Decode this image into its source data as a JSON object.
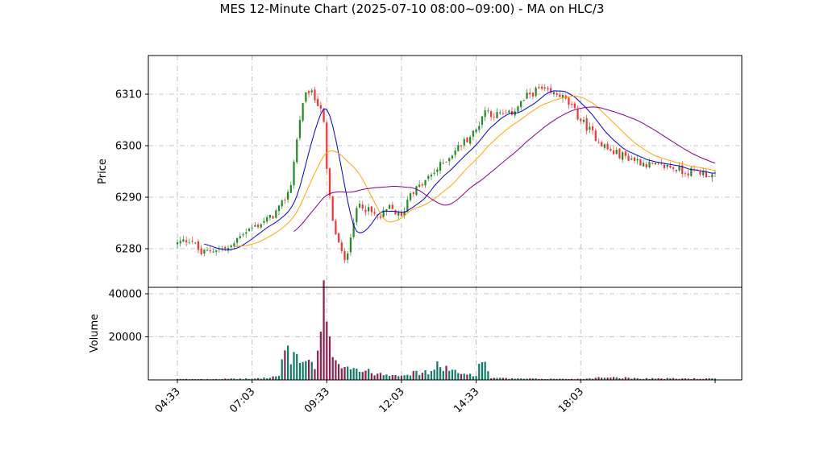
{
  "chart_data": {
    "type": "candlestick",
    "title": "MES 12-Minute Chart (2025-07-10 08:00~09:00) - MA on HLC/3",
    "price_panel": {
      "ylabel": "Price",
      "yticks": [
        6280,
        6290,
        6300,
        6310
      ],
      "ylim": [
        6272.5,
        6317.5
      ],
      "grid": true
    },
    "volume_panel": {
      "ylabel": "Volume",
      "yticks": [
        20000,
        40000
      ],
      "ylim": [
        0,
        40000
      ],
      "grid": true
    },
    "x_ticks": [
      "04:33",
      "07:03",
      "09:33",
      "12:03",
      "14:33",
      "18:03"
    ],
    "x_start": "04:33",
    "x_end": "22:33",
    "bar_minutes": 6,
    "colors": {
      "up": "#228b22",
      "down": "#ff3030",
      "ma_fast": "#0000cd",
      "ma_mid": "#ffa500",
      "ma_slow": "#800080",
      "vol_up": "#0d7a6a",
      "vol_down": "#8b2252"
    },
    "close_anchors": [
      [
        "04:33",
        6281
      ],
      [
        "05:00",
        6282
      ],
      [
        "05:20",
        6279
      ],
      [
        "05:50",
        6280
      ],
      [
        "06:20",
        6280
      ],
      [
        "06:40",
        6283
      ],
      [
        "07:03",
        6284
      ],
      [
        "07:40",
        6286
      ],
      [
        "08:00",
        6288
      ],
      [
        "08:20",
        6292
      ],
      [
        "08:40",
        6306
      ],
      [
        "08:55",
        6311
      ],
      [
        "09:10",
        6309
      ],
      [
        "09:25",
        6307
      ],
      [
        "09:33",
        6295
      ],
      [
        "09:45",
        6285
      ],
      [
        "10:00",
        6280
      ],
      [
        "10:10",
        6277
      ],
      [
        "10:25",
        6285
      ],
      [
        "10:40",
        6289
      ],
      [
        "11:00",
        6287
      ],
      [
        "11:20",
        6286
      ],
      [
        "11:40",
        6288
      ],
      [
        "12:03",
        6286
      ],
      [
        "12:20",
        6291
      ],
      [
        "12:40",
        6292
      ],
      [
        "13:00",
        6294
      ],
      [
        "13:20",
        6296
      ],
      [
        "13:40",
        6298
      ],
      [
        "14:00",
        6300
      ],
      [
        "14:33",
        6303
      ],
      [
        "14:50",
        6307
      ],
      [
        "15:10",
        6306
      ],
      [
        "15:40",
        6306
      ],
      [
        "16:00",
        6308
      ],
      [
        "16:20",
        6310
      ],
      [
        "16:40",
        6311
      ],
      [
        "17:00",
        6310
      ],
      [
        "17:20",
        6310
      ],
      [
        "17:40",
        6308
      ],
      [
        "18:03",
        6305
      ],
      [
        "18:30",
        6302
      ],
      [
        "19:00",
        6299
      ],
      [
        "19:30",
        6298
      ],
      [
        "20:00",
        6297
      ],
      [
        "20:30",
        6296
      ],
      [
        "21:00",
        6296
      ],
      [
        "21:30",
        6295
      ],
      [
        "22:00",
        6295
      ],
      [
        "22:33",
        6294
      ]
    ],
    "volume_anchors": [
      [
        "04:33",
        400
      ],
      [
        "07:03",
        600
      ],
      [
        "07:40",
        1200
      ],
      [
        "08:00",
        2500
      ],
      [
        "08:10",
        20000
      ],
      [
        "08:20",
        11000
      ],
      [
        "08:30",
        14000
      ],
      [
        "08:40",
        9000
      ],
      [
        "08:50",
        11000
      ],
      [
        "09:10",
        5000
      ],
      [
        "09:20",
        22000
      ],
      [
        "09:27",
        39000
      ],
      [
        "09:35",
        20000
      ],
      [
        "09:50",
        12000
      ],
      [
        "10:05",
        8000
      ],
      [
        "10:20",
        7000
      ],
      [
        "10:40",
        5000
      ],
      [
        "11:00",
        4000
      ],
      [
        "11:30",
        3000
      ],
      [
        "12:03",
        3000
      ],
      [
        "12:30",
        3500
      ],
      [
        "13:00",
        4000
      ],
      [
        "13:20",
        8000
      ],
      [
        "13:40",
        5000
      ],
      [
        "14:00",
        3000
      ],
      [
        "14:33",
        3000
      ],
      [
        "14:40",
        7000
      ],
      [
        "14:50",
        12000
      ],
      [
        "15:00",
        1000
      ],
      [
        "16:00",
        600
      ],
      [
        "18:03",
        500
      ],
      [
        "19:00",
        1500
      ],
      [
        "20:00",
        800
      ],
      [
        "22:33",
        600
      ]
    ]
  }
}
